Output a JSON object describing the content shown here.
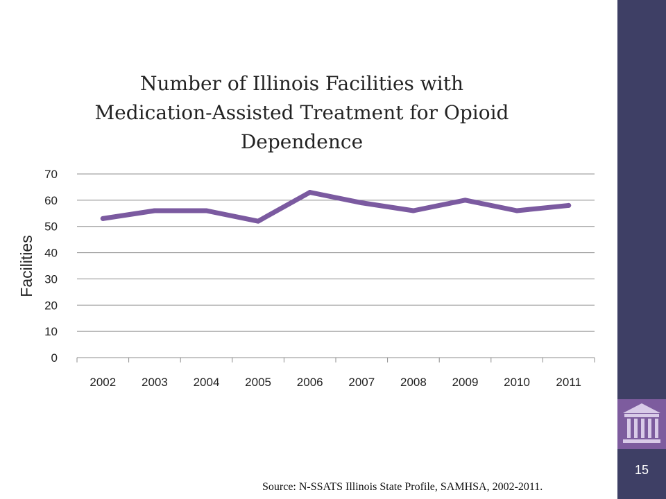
{
  "slide": {
    "page_number": "15",
    "source": "Source: N-SSATS Illinois State Profile, SAMHSA, 2002-2011.",
    "logo_icon": "building-columns-icon",
    "colors": {
      "sidebar": "#3e3f65",
      "logo_bg": "#7d5c9e",
      "line": "#7b5aa0"
    }
  },
  "chart_data": {
    "type": "line",
    "title_lines": [
      "Number of Illinois Facilities with",
      "Medication-Assisted Treatment for Opioid",
      "Dependence"
    ],
    "ylabel": "Facilities",
    "xlabel": "",
    "categories": [
      "2002",
      "2003",
      "2004",
      "2005",
      "2006",
      "2007",
      "2008",
      "2009",
      "2010",
      "2011"
    ],
    "series": [
      {
        "values": [
          53,
          56,
          56,
          52,
          63,
          59,
          56,
          60,
          56,
          58
        ]
      }
    ],
    "ylim": [
      0,
      70
    ],
    "yticks": [
      0,
      10,
      20,
      30,
      40,
      50,
      60,
      70
    ],
    "grid": true,
    "legend": "none"
  }
}
